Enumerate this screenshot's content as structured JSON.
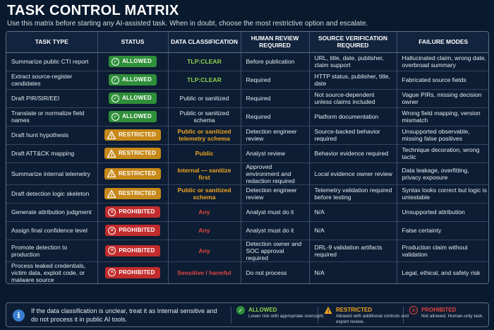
{
  "title": "TASK CONTROL MATRIX",
  "subtitle": "Use this matrix before starting any AI-assisted task. When in doubt, choose the most restrictive option and escalate.",
  "headers": [
    "TASK TYPE",
    "STATUS",
    "DATA CLASSIFICATION",
    "HUMAN REVIEW REQUIRED",
    "SOURCE VERIFICATION REQUIRED",
    "FAILURE MODES"
  ],
  "status_labels": {
    "allowed": "ALLOWED",
    "restricted": "RESTRICTED",
    "prohibited": "PROHIBITED"
  },
  "colors": {
    "allowed": "#2f8f3a",
    "restricted": "#c7891a",
    "prohibited": "#c22c2c",
    "class_green": "#8fd14f",
    "class_orange": "#f0a623",
    "class_red": "#e0453f",
    "class_white": "#e6ecf3"
  },
  "rows": [
    {
      "task": "Summarize public CTI report",
      "status": "allowed",
      "classification": "TLP:CLEAR",
      "class_color": "class_green",
      "review": "Before publication",
      "verification": "URL, title, date, publisher, claim support",
      "failure": "Hallucinated claim, wrong date, overbroad summary"
    },
    {
      "task": "Extract source-register candidates",
      "status": "allowed",
      "classification": "TLP:CLEAR",
      "class_color": "class_green",
      "review": "Required",
      "verification": "HTTP status, publisher, title, date",
      "failure": "Fabricated source fields"
    },
    {
      "task": "Draft PIR/SIR/EEI",
      "status": "allowed",
      "classification": "Public or sanitized",
      "class_color": "class_white",
      "review": "Required",
      "verification": "Not source-dependent unless claims included",
      "failure": "Vague PIRs, missing decision owner"
    },
    {
      "task": "Translate or normalize field names",
      "status": "allowed",
      "classification": "Public or sanitized schema",
      "class_color": "class_white",
      "review": "Required",
      "verification": "Platform documentation",
      "failure": "Wrong field mapping, version mismatch"
    },
    {
      "task": "Draft hunt hypothesis",
      "status": "restricted",
      "classification": "Public or sanitized telemetry schema",
      "class_color": "class_orange",
      "review": "Detection engineer review",
      "verification": "Source-backed behavior required",
      "failure": "Unsupported observable, missing false positives"
    },
    {
      "task": "Draft ATT&CK mapping",
      "status": "restricted",
      "classification": "Public",
      "class_color": "class_orange",
      "review": "Analyst review",
      "verification": "Behavior evidence required",
      "failure": "Technique decoration, wrong tactic"
    },
    {
      "task": "Summarize internal telemetry",
      "status": "restricted",
      "classification": "Internal — sanitize first",
      "class_color": "class_orange",
      "review": "Approved environment and redaction required",
      "verification": "Local evidence owner review",
      "failure": "Data leakage, overfitting, privacy exposure"
    },
    {
      "task": "Draft detection logic skeleton",
      "status": "restricted",
      "classification": "Public or sanitized schema",
      "class_color": "class_orange",
      "review": "Detection engineer review",
      "verification": "Telemetry validation required before testing",
      "failure": "Syntax looks correct but logic is untestable"
    },
    {
      "task": "Generate attribution judgment",
      "status": "prohibited",
      "classification": "Any",
      "class_color": "class_red",
      "review": "Analyst must do it",
      "verification": "N/A",
      "failure": "Unsupported attribution"
    },
    {
      "task": "Assign final confidence level",
      "status": "prohibited",
      "classification": "Any",
      "class_color": "class_red",
      "review": "Analyst must do it",
      "verification": "N/A",
      "failure": "False certainty"
    },
    {
      "task": "Promote detection to production",
      "status": "prohibited",
      "classification": "Any",
      "class_color": "class_red",
      "review": "Detection owner and SOC approval required",
      "verification": "DRL-9 validation artifacts required",
      "failure": "Production claim without validation"
    },
    {
      "task": "Process leaked credentials, victim data, exploit code, or malware source",
      "status": "prohibited",
      "classification": "Sensitive / harmful",
      "class_color": "class_red",
      "review": "Do not process",
      "verification": "N/A",
      "failure": "Legal, ethical, and safety risk"
    }
  ],
  "footer": {
    "note": "If the data classification is unclear, treat it as Internal sensitive and do not process it in public AI tools.",
    "legend": [
      {
        "key": "allowed",
        "label": "ALLOWED",
        "desc": "Lower risk with appropriate oversight."
      },
      {
        "key": "restricted",
        "label": "RESTRICTED",
        "desc": "Allowed with additional controls and expert review."
      },
      {
        "key": "prohibited",
        "label": "PROHIBITED",
        "desc": "Not allowed. Human-only task."
      }
    ]
  }
}
